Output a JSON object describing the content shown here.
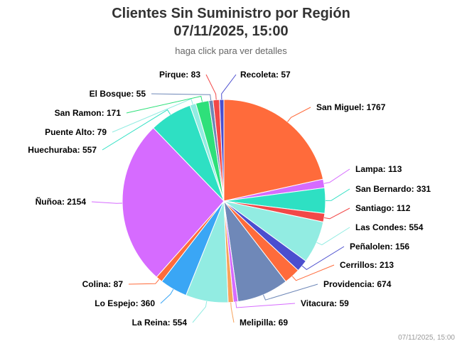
{
  "header": {
    "title_line1": "Clientes Sin Suministro por Región",
    "title_line2": "07/11/2025, 15:00",
    "subtitle": "haga click para ver detalles"
  },
  "footer": {
    "stamp": "07/11/2025, 15:00"
  },
  "chart_data": {
    "type": "pie",
    "title": "Clientes Sin Suministro por Región",
    "subtitle": "haga click para ver detalles",
    "start_angle_deg": 0,
    "slices": [
      {
        "label": "San Miguel",
        "value": 1767,
        "color": "#ff6b3b"
      },
      {
        "label": "Lampa",
        "value": 113,
        "color": "#d66bff"
      },
      {
        "label": "San Bernardo",
        "value": 331,
        "color": "#2ee0c3"
      },
      {
        "label": "Santiago",
        "value": 112,
        "color": "#f24848"
      },
      {
        "label": "Las Condes",
        "value": 554,
        "color": "#92ece2"
      },
      {
        "label": "Peñalolen",
        "value": 156,
        "color": "#4b4ecf"
      },
      {
        "label": "Cerrillos",
        "value": 213,
        "color": "#ff6b3b"
      },
      {
        "label": "Providencia",
        "value": 674,
        "color": "#6f88b8"
      },
      {
        "label": "Vitacura",
        "value": 59,
        "color": "#d66bff"
      },
      {
        "label": "Melipilla",
        "value": 69,
        "color": "#f7a35c"
      },
      {
        "label": "La Reina",
        "value": 554,
        "color": "#92ece2"
      },
      {
        "label": "Lo Espejo",
        "value": 360,
        "color": "#3aa6f5"
      },
      {
        "label": "Colina",
        "value": 87,
        "color": "#ff6b3b"
      },
      {
        "label": "Ñuñoa",
        "value": 2154,
        "color": "#d66bff"
      },
      {
        "label": "Huechuraba",
        "value": 557,
        "color": "#2ee0c3"
      },
      {
        "label": "Puente Alto",
        "value": 79,
        "color": "#92ece2"
      },
      {
        "label": "San Ramon",
        "value": 171,
        "color": "#2ee07a"
      },
      {
        "label": "El Bosque",
        "value": 55,
        "color": "#6f88b8"
      },
      {
        "label": "Pirque",
        "value": 83,
        "color": "#f24848"
      },
      {
        "label": "Recoleta",
        "value": 57,
        "color": "#4b4ecf"
      }
    ]
  }
}
